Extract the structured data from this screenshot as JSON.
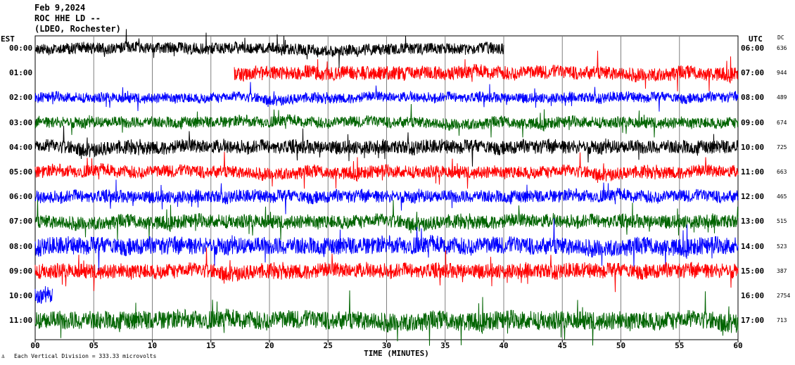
{
  "header": {
    "date": "Feb 9,2024",
    "station": "ROC HHE LD --",
    "network": "(LDEO, Rochester)"
  },
  "left_axis_label": "EST",
  "right_axis_label": "UTC",
  "dc_label": "DC",
  "footer": {
    "mark": "⚓",
    "text": "Each Vertical Division =  333.33 microvolts"
  },
  "colors": {
    "black": "#000000",
    "red": "#ff0000",
    "blue": "#0000ff",
    "green": "#006400",
    "grid": "#808080"
  },
  "chart_data": {
    "type": "line",
    "title": "Feb 9,2024 ROC HHE LD -- (LDEO, Rochester)",
    "xlabel": "TIME (MINUTES)",
    "ylabel": "",
    "xlim": [
      0,
      60
    ],
    "x_ticks": [
      "00",
      "05",
      "10",
      "15",
      "20",
      "25",
      "30",
      "35",
      "40",
      "45",
      "50",
      "55",
      "60"
    ],
    "grid": true,
    "traces": [
      {
        "est": "00:00",
        "utc": "06:00",
        "dc": "636",
        "color": "black",
        "start_min": 0,
        "end_min": 40,
        "amplitude": 0.45
      },
      {
        "est": "01:00",
        "utc": "07:00",
        "dc": "944",
        "color": "red",
        "start_min": 17,
        "end_min": 60,
        "amplitude": 0.55
      },
      {
        "est": "02:00",
        "utc": "08:00",
        "dc": "489",
        "color": "blue",
        "start_min": 0,
        "end_min": 60,
        "amplitude": 0.4
      },
      {
        "est": "03:00",
        "utc": "09:00",
        "dc": "674",
        "color": "green",
        "start_min": 0,
        "end_min": 60,
        "amplitude": 0.45
      },
      {
        "est": "04:00",
        "utc": "10:00",
        "dc": "725",
        "color": "black",
        "start_min": 0,
        "end_min": 60,
        "amplitude": 0.55
      },
      {
        "est": "05:00",
        "utc": "11:00",
        "dc": "663",
        "color": "red",
        "start_min": 0,
        "end_min": 60,
        "amplitude": 0.5
      },
      {
        "est": "06:00",
        "utc": "12:00",
        "dc": "465",
        "color": "blue",
        "start_min": 0,
        "end_min": 60,
        "amplitude": 0.5
      },
      {
        "est": "07:00",
        "utc": "13:00",
        "dc": "515",
        "color": "green",
        "start_min": 0,
        "end_min": 60,
        "amplitude": 0.55
      },
      {
        "est": "08:00",
        "utc": "14:00",
        "dc": "523",
        "color": "blue",
        "start_min": 0,
        "end_min": 60,
        "amplitude": 0.7
      },
      {
        "est": "09:00",
        "utc": "15:00",
        "dc": "387",
        "color": "red",
        "start_min": 0,
        "end_min": 60,
        "amplitude": 0.6
      },
      {
        "est": "10:00",
        "utc": "16:00",
        "dc": "2754",
        "color": "blue",
        "start_min": 0,
        "end_min": 1.5,
        "amplitude": 0.6
      },
      {
        "est": "11:00",
        "utc": "17:00",
        "dc": "713",
        "color": "green",
        "start_min": 0,
        "end_min": 60,
        "amplitude": 0.75
      }
    ]
  }
}
